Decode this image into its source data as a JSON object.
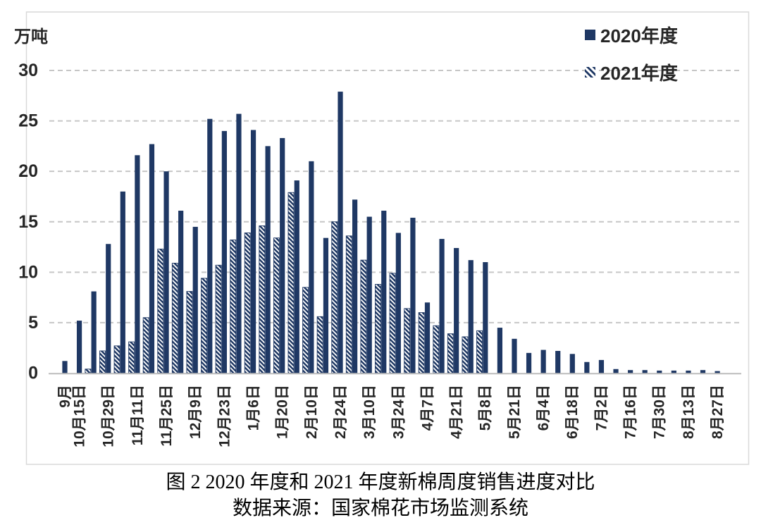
{
  "figure": {
    "caption_line1": "图 2 2020 年度和 2021 年度新棉周度销售进度对比",
    "caption_line2": "数据来源：国家棉花市场监测系统"
  },
  "legend": {
    "series": [
      {
        "label": "2020年度",
        "swatch": "solid-square"
      },
      {
        "label": "2021年度",
        "swatch": "diagonal-hatch-square"
      }
    ]
  },
  "chart_data": {
    "type": "bar",
    "title": "图 2 2020 年度和 2021 年度新棉周度销售进度对比",
    "source_note": "数据来源：国家棉花市场监测系统",
    "unit_label": "万吨",
    "xlabel": "",
    "ylabel": "万吨",
    "ylim": [
      0,
      30
    ],
    "yticks": [
      0,
      5,
      10,
      15,
      20,
      25,
      30
    ],
    "grid": "horizontal-dashed",
    "legend_position": "top-right",
    "colors": {
      "bar_navy": "#1F3864",
      "gridline": "#c6c6c6",
      "axis_line": "#bdbdbd",
      "frame_border": "#d9d9d9"
    },
    "categories": [
      "9月",
      "10月15日",
      "",
      "10月29日",
      "",
      "11月11日",
      "",
      "11月25日",
      "",
      "12月9日",
      "",
      "12月23日",
      "",
      "1月6日",
      "",
      "1月20日",
      "",
      "2月10日",
      "",
      "2月24日",
      "",
      "3月10日",
      "",
      "3月24日",
      "",
      "4月7日",
      "",
      "4月21日",
      "",
      "5月8日",
      "",
      "5月21日",
      "",
      "6月4日",
      "",
      "6月18日",
      "",
      "7月2日",
      "",
      "7月16日",
      "",
      "7月30日",
      "",
      "8月13日",
      "",
      "8月27日"
    ],
    "series": [
      {
        "name": "2020年度",
        "style": "solid",
        "values": [
          1.2,
          5.2,
          8.1,
          12.8,
          18.0,
          21.6,
          22.7,
          20.0,
          16.1,
          14.5,
          25.2,
          24.0,
          25.7,
          24.1,
          22.5,
          23.3,
          19.1,
          21.0,
          13.4,
          27.9,
          17.2,
          15.5,
          16.1,
          13.9,
          15.4,
          7.0,
          13.3,
          12.4,
          11.2,
          11.0,
          4.5,
          3.4,
          2.0,
          2.3,
          2.2,
          1.9,
          1.1,
          1.3,
          0.4,
          0.3,
          0.3,
          0.25,
          0.25,
          0.25,
          0.3,
          0.2
        ]
      },
      {
        "name": "2021年度",
        "style": "diagonal-hatch",
        "values": [
          null,
          0.4,
          2.2,
          2.7,
          3.1,
          5.5,
          12.3,
          10.9,
          8.1,
          9.4,
          10.7,
          13.2,
          13.9,
          14.6,
          13.4,
          17.9,
          8.5,
          5.6,
          15.0,
          13.6,
          11.2,
          8.8,
          9.9,
          6.4,
          6.0,
          4.7,
          3.9,
          3.6,
          4.2,
          null,
          null,
          null,
          null,
          null,
          null,
          null,
          null,
          null,
          null,
          null,
          null,
          null,
          null,
          null,
          null,
          null
        ]
      }
    ]
  }
}
